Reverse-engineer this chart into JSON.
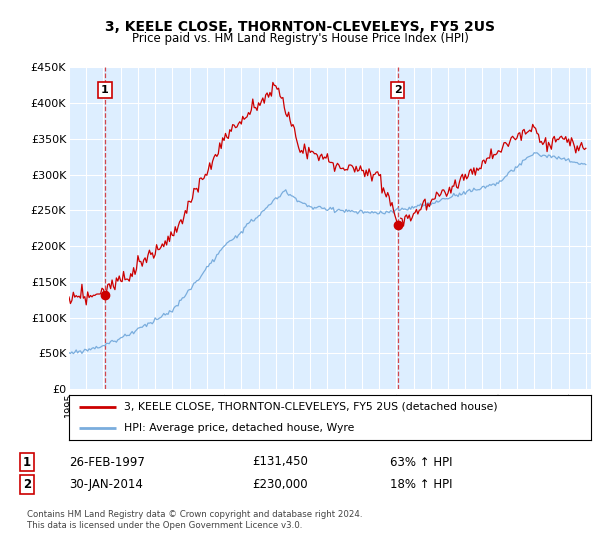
{
  "title": "3, KEELE CLOSE, THORNTON-CLEVELEYS, FY5 2US",
  "subtitle": "Price paid vs. HM Land Registry's House Price Index (HPI)",
  "legend_line1": "3, KEELE CLOSE, THORNTON-CLEVELEYS, FY5 2US (detached house)",
  "legend_line2": "HPI: Average price, detached house, Wyre",
  "sale1_date": "26-FEB-1997",
  "sale1_price": "£131,450",
  "sale1_hpi": "63% ↑ HPI",
  "sale2_date": "30-JAN-2014",
  "sale2_price": "£230,000",
  "sale2_hpi": "18% ↑ HPI",
  "footnote": "Contains HM Land Registry data © Crown copyright and database right 2024.\nThis data is licensed under the Open Government Licence v3.0.",
  "hpi_color": "#7aaddd",
  "price_color": "#cc0000",
  "plot_bg_color": "#ddeeff",
  "ylim": [
    0,
    450000
  ],
  "yticks": [
    0,
    50000,
    100000,
    150000,
    200000,
    250000,
    300000,
    350000,
    400000,
    450000
  ],
  "sale1_year": 1997.12,
  "sale1_price_val": 131450,
  "sale2_year": 2014.08,
  "sale2_price_val": 230000
}
